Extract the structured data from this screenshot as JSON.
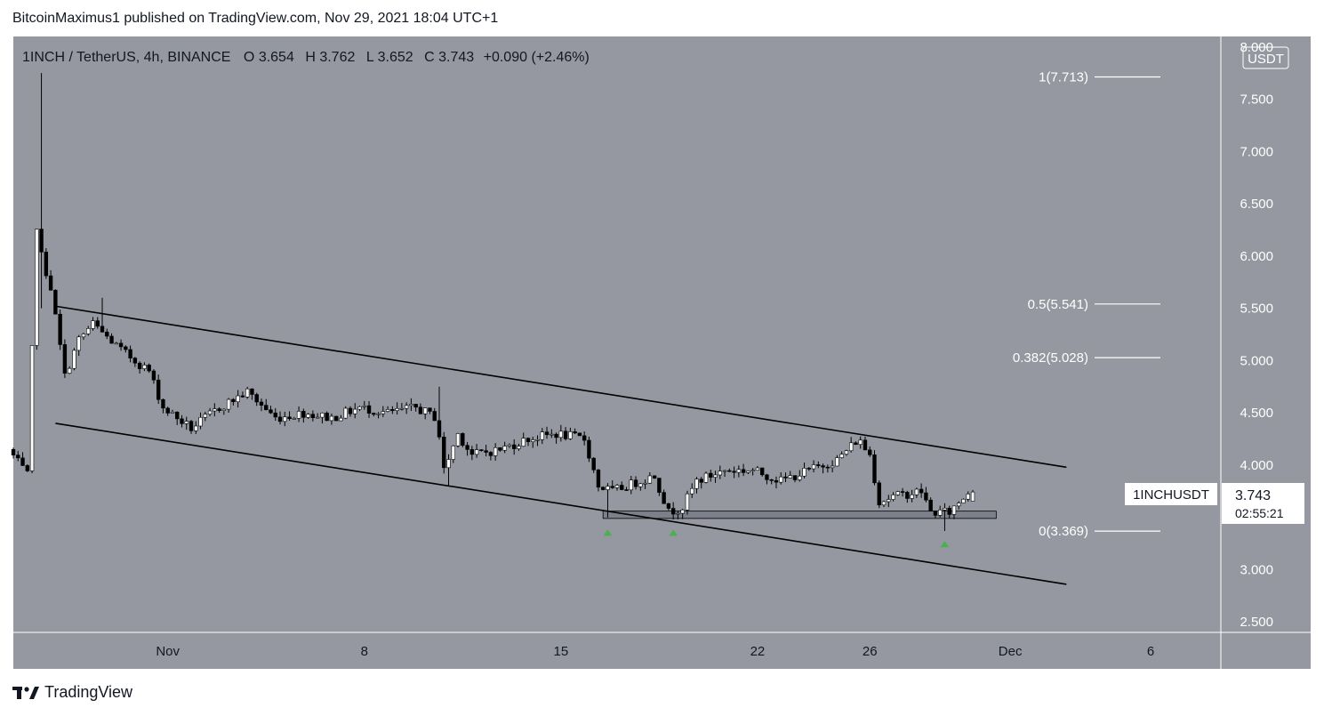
{
  "header": {
    "text": "BitcoinMaximus1 published on TradingView.com, Nov 29, 2021 18:04 UTC+1"
  },
  "footer": {
    "brand": "TradingView",
    "logo_icon": "tradingview-logo-icon"
  },
  "legend": {
    "symbol": "1INCH / TetherUS, 4h, BINANCE",
    "o_label": "O",
    "o_value": "3.654",
    "h_label": "H",
    "h_value": "3.762",
    "l_label": "L",
    "l_value": "3.652",
    "c_label": "C",
    "c_value": "3.743",
    "change": "+0.090 (+2.46%)"
  },
  "currency_badge": "USDT",
  "price_label": {
    "symbol": "1INCHUSDT",
    "price": "3.743",
    "countdown": "02:55:21"
  },
  "colors": {
    "background": "#9598a1",
    "candle_up": "#ffffff",
    "candle_down": "#000000",
    "wick": "#000000",
    "channel": "#000000",
    "fib": "#ffffff",
    "support_zone": "#787b86",
    "marker": "#4caf50"
  },
  "chart_data": {
    "type": "candlestick",
    "timeframe": "4h",
    "y_axis": {
      "ticks": [
        "8.000",
        "7.500",
        "7.000",
        "6.500",
        "6.000",
        "5.500",
        "5.000",
        "4.500",
        "4.000",
        "3.500",
        "3.000",
        "2.500"
      ],
      "ylim": [
        2.4,
        8.1
      ]
    },
    "x_axis": {
      "ticks": [
        {
          "label": "Nov",
          "date": "2021-11-01"
        },
        {
          "label": "8",
          "date": "2021-11-08"
        },
        {
          "label": "15",
          "date": "2021-11-15"
        },
        {
          "label": "22",
          "date": "2021-11-22"
        },
        {
          "label": "26",
          "date": "2021-11-26"
        },
        {
          "label": "Dec",
          "date": "2021-12-01"
        },
        {
          "label": "6",
          "date": "2021-12-06"
        }
      ],
      "xlim": [
        "2021-10-26T12:00",
        "2021-12-08T12:00"
      ]
    },
    "anchors": [
      {
        "t": "2021-10-26T12:00",
        "price": 4.15
      },
      {
        "t": "2021-10-27T04:00",
        "price": 3.9
      },
      {
        "t": "2021-10-27T12:00",
        "price": 6.3
      },
      {
        "t": "2021-10-27T16:00",
        "price": 6.0
      },
      {
        "t": "2021-10-28T00:00",
        "price": 5.7
      },
      {
        "t": "2021-10-28T12:00",
        "price": 4.85
      },
      {
        "t": "2021-10-29T00:00",
        "price": 5.2
      },
      {
        "t": "2021-10-29T12:00",
        "price": 5.35
      },
      {
        "t": "2021-10-30T12:00",
        "price": 5.1
      },
      {
        "t": "2021-10-31T12:00",
        "price": 4.9
      },
      {
        "t": "2021-11-01T00:00",
        "price": 4.55
      },
      {
        "t": "2021-11-02T00:00",
        "price": 4.35
      },
      {
        "t": "2021-11-03T00:00",
        "price": 4.55
      },
      {
        "t": "2021-11-04T00:00",
        "price": 4.7
      },
      {
        "t": "2021-11-05T00:00",
        "price": 4.45
      },
      {
        "t": "2021-11-06T00:00",
        "price": 4.5
      },
      {
        "t": "2021-11-07T00:00",
        "price": 4.45
      },
      {
        "t": "2021-11-08T00:00",
        "price": 4.55
      },
      {
        "t": "2021-11-09T00:00",
        "price": 4.5
      },
      {
        "t": "2021-11-10T00:00",
        "price": 4.55
      },
      {
        "t": "2021-11-10T18:00",
        "price": 4.45
      },
      {
        "t": "2021-11-11T00:00",
        "price": 3.95
      },
      {
        "t": "2021-11-11T12:00",
        "price": 4.3
      },
      {
        "t": "2021-11-12T00:00",
        "price": 4.1
      },
      {
        "t": "2021-11-13T00:00",
        "price": 4.15
      },
      {
        "t": "2021-11-14T00:00",
        "price": 4.25
      },
      {
        "t": "2021-11-15T00:00",
        "price": 4.3
      },
      {
        "t": "2021-11-16T00:00",
        "price": 4.25
      },
      {
        "t": "2021-11-16T12:00",
        "price": 3.8
      },
      {
        "t": "2021-11-17T00:00",
        "price": 3.75
      },
      {
        "t": "2021-11-18T00:00",
        "price": 3.85
      },
      {
        "t": "2021-11-18T12:00",
        "price": 3.9
      },
      {
        "t": "2021-11-19T00:00",
        "price": 3.55
      },
      {
        "t": "2021-11-19T12:00",
        "price": 3.6
      },
      {
        "t": "2021-11-20T00:00",
        "price": 3.85
      },
      {
        "t": "2021-11-21T00:00",
        "price": 3.95
      },
      {
        "t": "2021-11-22T00:00",
        "price": 3.95
      },
      {
        "t": "2021-11-23T00:00",
        "price": 3.85
      },
      {
        "t": "2021-11-24T00:00",
        "price": 3.95
      },
      {
        "t": "2021-11-25T00:00",
        "price": 4.05
      },
      {
        "t": "2021-11-25T18:00",
        "price": 4.25
      },
      {
        "t": "2021-11-26T04:00",
        "price": 4.1
      },
      {
        "t": "2021-11-26T12:00",
        "price": 3.65
      },
      {
        "t": "2021-11-27T00:00",
        "price": 3.7
      },
      {
        "t": "2021-11-28T00:00",
        "price": 3.75
      },
      {
        "t": "2021-11-28T08:00",
        "price": 3.55
      },
      {
        "t": "2021-11-29T00:00",
        "price": 3.55
      },
      {
        "t": "2021-11-29T16:00",
        "price": 3.74
      }
    ],
    "spikes": [
      {
        "t": "2021-10-27T12:00",
        "high": 7.75,
        "low": 5.5
      },
      {
        "t": "2021-10-29T16:00",
        "high": 5.6
      },
      {
        "t": "2021-11-10T16:00",
        "high": 4.75
      },
      {
        "t": "2021-11-11T00:00",
        "low": 3.8
      },
      {
        "t": "2021-11-16T16:00",
        "low": 3.5
      },
      {
        "t": "2021-11-19T00:00",
        "low": 3.48
      },
      {
        "t": "2021-11-28T16:00",
        "low": 3.37
      }
    ],
    "last_candle": {
      "t": "2021-11-29T16:00",
      "open": 3.654,
      "high": 3.762,
      "low": 3.652,
      "close": 3.743
    },
    "channel": {
      "upper": [
        {
          "t": "2021-10-28T00:00",
          "price": 5.52
        },
        {
          "t": "2021-12-03T00:00",
          "price": 3.98
        }
      ],
      "lower": [
        {
          "t": "2021-10-28T00:00",
          "price": 4.4
        },
        {
          "t": "2021-12-03T00:00",
          "price": 2.86
        }
      ]
    },
    "fib_levels": [
      {
        "label": "1(7.713)",
        "price": 7.713
      },
      {
        "label": "0.5(5.541)",
        "price": 5.541
      },
      {
        "label": "0.382(5.028)",
        "price": 5.028
      },
      {
        "label": "0(3.369)",
        "price": 3.369
      }
    ],
    "support_zone": {
      "t_start": "2021-11-16T12:00",
      "t_end": "2021-11-30T12:00",
      "price_low": 3.49,
      "price_high": 3.56
    },
    "markers": [
      {
        "t": "2021-11-16T16:00",
        "price": 3.35
      },
      {
        "t": "2021-11-19T00:00",
        "price": 3.35
      },
      {
        "t": "2021-11-28T16:00",
        "price": 3.24
      }
    ]
  }
}
